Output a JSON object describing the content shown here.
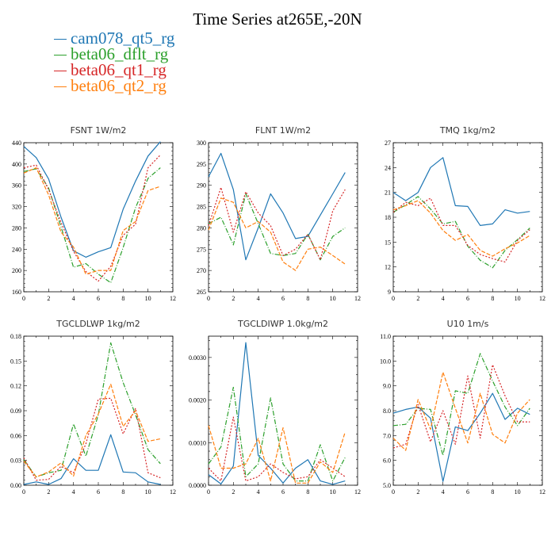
{
  "title": "Time Series at265E,-20N",
  "legend": [
    {
      "name": "cam078_qt5_rg",
      "color": "#1f77b4"
    },
    {
      "name": "beta06_dflt_rg",
      "color": "#2ca02c"
    },
    {
      "name": "beta06_qt1_rg",
      "color": "#d62728"
    },
    {
      "name": "beta06_qt2_rg",
      "color": "#ff7f0e"
    }
  ],
  "chart_data": [
    {
      "type": "line",
      "title": "FSNT",
      "unit": "1W/m2",
      "x": [
        0,
        1,
        2,
        3,
        4,
        5,
        6,
        7,
        8,
        9,
        10,
        11
      ],
      "xlim": [
        0,
        12
      ],
      "xticks": [
        "0",
        "2",
        "4",
        "6",
        "8",
        "10",
        "12"
      ],
      "ylim": [
        160,
        440
      ],
      "yticks": [
        "160",
        "200",
        "240",
        "280",
        "320",
        "360",
        "400",
        "440"
      ],
      "series": [
        {
          "name": "cam078_qt5_rg",
          "values": [
            433,
            412,
            372,
            300,
            237,
            225,
            235,
            243,
            315,
            368,
            415,
            442
          ]
        },
        {
          "name": "beta06_dflt_rg",
          "values": [
            386,
            391,
            355,
            282,
            206,
            213,
            193,
            177,
            243,
            318,
            373,
            393
          ]
        },
        {
          "name": "beta06_qt1_rg",
          "values": [
            393,
            398,
            352,
            290,
            236,
            198,
            180,
            208,
            266,
            287,
            393,
            417
          ]
        },
        {
          "name": "beta06_qt2_rg",
          "values": [
            383,
            393,
            342,
            272,
            244,
            193,
            200,
            200,
            275,
            292,
            350,
            358
          ]
        }
      ]
    },
    {
      "type": "line",
      "title": "FLNT",
      "unit": "1W/m2",
      "x": [
        0,
        1,
        2,
        3,
        4,
        5,
        6,
        7,
        8,
        9,
        10,
        11
      ],
      "xlim": [
        0,
        12
      ],
      "xticks": [
        "0",
        "2",
        "4",
        "6",
        "8",
        "10",
        "12"
      ],
      "ylim": [
        265,
        300
      ],
      "yticks": [
        "265",
        "270",
        "275",
        "280",
        "285",
        "290",
        "295",
        "300"
      ],
      "series": [
        {
          "name": "cam078_qt5_rg",
          "values": [
            292,
            297.5,
            289,
            272.5,
            280,
            288,
            283.5,
            277.5,
            278,
            283,
            288,
            293
          ]
        },
        {
          "name": "beta06_dflt_rg",
          "values": [
            281,
            282.5,
            276,
            288,
            281,
            274,
            273.5,
            274,
            278.5,
            272.5,
            278,
            280
          ]
        },
        {
          "name": "beta06_qt1_rg",
          "values": [
            280.5,
            289.5,
            279,
            288.5,
            283.5,
            280.5,
            273.5,
            275,
            278.5,
            272.5,
            284,
            289
          ]
        },
        {
          "name": "beta06_qt2_rg",
          "values": [
            279.5,
            287,
            286,
            280,
            281.5,
            279,
            272,
            270,
            275,
            275.5,
            273.5,
            271.5
          ]
        }
      ]
    },
    {
      "type": "line",
      "title": "TMQ",
      "unit": "1kg/m2",
      "x": [
        0,
        1,
        2,
        3,
        4,
        5,
        6,
        7,
        8,
        9,
        10,
        11
      ],
      "xlim": [
        0,
        12
      ],
      "xticks": [
        "0",
        "2",
        "4",
        "6",
        "8",
        "10",
        "12"
      ],
      "ylim": [
        9,
        27
      ],
      "yticks": [
        "9",
        "12",
        "15",
        "18",
        "21",
        "24",
        "27"
      ],
      "series": [
        {
          "name": "cam078_qt5_rg",
          "values": [
            21,
            20,
            21,
            24,
            25.2,
            19.4,
            19.3,
            17,
            17.2,
            18.9,
            18.5,
            18.7
          ]
        },
        {
          "name": "beta06_dflt_rg",
          "values": [
            18.6,
            19.5,
            20.5,
            19,
            17.2,
            17.5,
            14.5,
            12.8,
            11.9,
            14,
            15.3,
            16.7
          ]
        },
        {
          "name": "beta06_qt1_rg",
          "values": [
            18.6,
            19.8,
            19.4,
            20.3,
            17,
            17,
            14.6,
            13.5,
            13,
            12.6,
            15.2,
            16.5
          ]
        },
        {
          "name": "beta06_qt2_rg",
          "values": [
            18.9,
            19.4,
            20,
            18.5,
            16.4,
            15.2,
            15.9,
            14,
            13.3,
            14.2,
            14.9,
            15.8
          ]
        }
      ]
    },
    {
      "type": "line",
      "title": "TGCLDLWP",
      "unit": "1kg/m2",
      "x": [
        0,
        1,
        2,
        3,
        4,
        5,
        6,
        7,
        8,
        9,
        10,
        11
      ],
      "xlim": [
        0,
        12
      ],
      "xticks": [
        "0",
        "2",
        "4",
        "6",
        "8",
        "10",
        "12"
      ],
      "ylim": [
        0,
        0.18
      ],
      "yticks": [
        "0.00",
        "0.03",
        "0.06",
        "0.09",
        "0.12",
        "0.15",
        "0.18"
      ],
      "series": [
        {
          "name": "cam078_qt5_rg",
          "values": [
            0.001,
            0.004,
            0.001,
            0.008,
            0.032,
            0.018,
            0.018,
            0.061,
            0.016,
            0.015,
            0.004,
            0.001
          ]
        },
        {
          "name": "beta06_dflt_rg",
          "values": [
            0.031,
            0.01,
            0.015,
            0.018,
            0.074,
            0.035,
            0.085,
            0.172,
            0.124,
            0.085,
            0.043,
            0.026
          ]
        },
        {
          "name": "beta06_qt1_rg",
          "values": [
            0.033,
            0.006,
            0.007,
            0.023,
            0.015,
            0.05,
            0.104,
            0.105,
            0.062,
            0.093,
            0.015,
            0.009
          ]
        },
        {
          "name": "beta06_qt2_rg",
          "values": [
            0.029,
            0.01,
            0.016,
            0.027,
            0.011,
            0.06,
            0.086,
            0.122,
            0.071,
            0.09,
            0.053,
            0.056
          ]
        }
      ]
    },
    {
      "type": "line",
      "title": "TGCLDIWP",
      "unit": "1.0kg/m2",
      "x": [
        0,
        1,
        2,
        3,
        4,
        5,
        6,
        7,
        8,
        9,
        10,
        11
      ],
      "xlim": [
        0,
        12
      ],
      "xticks": [
        "0",
        "2",
        "4",
        "6",
        "8",
        "10",
        "12"
      ],
      "ylim": [
        0,
        0.0035
      ],
      "yticks": [
        "0.0000",
        "0.0010",
        "0.0020",
        "0.0030"
      ],
      "series": [
        {
          "name": "cam078_qt5_rg",
          "values": [
            0.00025,
            3e-05,
            0.00045,
            0.00335,
            0.0007,
            0.0004,
            5e-05,
            0.0004,
            0.0006,
            0.0001,
            2e-05,
            0.0001
          ]
        },
        {
          "name": "beta06_dflt_rg",
          "values": [
            0.0005,
            0.0009,
            0.0023,
            0.0002,
            0.0005,
            0.00205,
            0.0005,
            0.0001,
            0.0001,
            0.00095,
            0.0001,
            0.00065
          ]
        },
        {
          "name": "beta06_qt1_rg",
          "values": [
            0.0004,
            0.0001,
            0.0016,
            0.0001,
            0.0002,
            0.0005,
            0.0003,
            0.00015,
            0.0002,
            0.0006,
            0.0004,
            0.0002
          ]
        },
        {
          "name": "beta06_qt2_rg",
          "values": [
            0.0014,
            0.0004,
            0.0004,
            0.0005,
            0.0011,
            0.0001,
            0.00135,
            5e-05,
            5e-05,
            0.00055,
            0.0003,
            0.00125
          ]
        }
      ]
    },
    {
      "type": "line",
      "title": "U10",
      "unit": "1m/s",
      "x": [
        0,
        1,
        2,
        3,
        4,
        5,
        6,
        7,
        8,
        9,
        10,
        11
      ],
      "xlim": [
        0,
        12
      ],
      "xticks": [
        "0",
        "2",
        "4",
        "6",
        "8",
        "10",
        "12"
      ],
      "ylim": [
        5,
        11
      ],
      "yticks": [
        "5.0",
        "6.0",
        "7.0",
        "8.0",
        "9.0",
        "10.0",
        "11.0"
      ],
      "series": [
        {
          "name": "cam078_qt5_rg",
          "values": [
            7.9,
            8.05,
            8.15,
            7.7,
            5.15,
            7.35,
            7.2,
            7.9,
            8.7,
            7.65,
            8.1,
            7.85
          ]
        },
        {
          "name": "beta06_dflt_rg",
          "values": [
            7.4,
            7.45,
            8.1,
            8.05,
            6.2,
            8.8,
            8.7,
            10.3,
            9.2,
            8.15,
            7.4,
            8.1
          ]
        },
        {
          "name": "beta06_qt1_rg",
          "values": [
            6.5,
            6.65,
            8.25,
            6.75,
            8,
            6.65,
            9.4,
            6.9,
            9.85,
            8.6,
            7.55,
            7.55
          ]
        },
        {
          "name": "beta06_qt2_rg",
          "values": [
            6.9,
            6.4,
            8.45,
            7.25,
            9.55,
            8.1,
            6.7,
            8.7,
            7.05,
            6.7,
            7.9,
            8.45
          ]
        }
      ]
    }
  ]
}
